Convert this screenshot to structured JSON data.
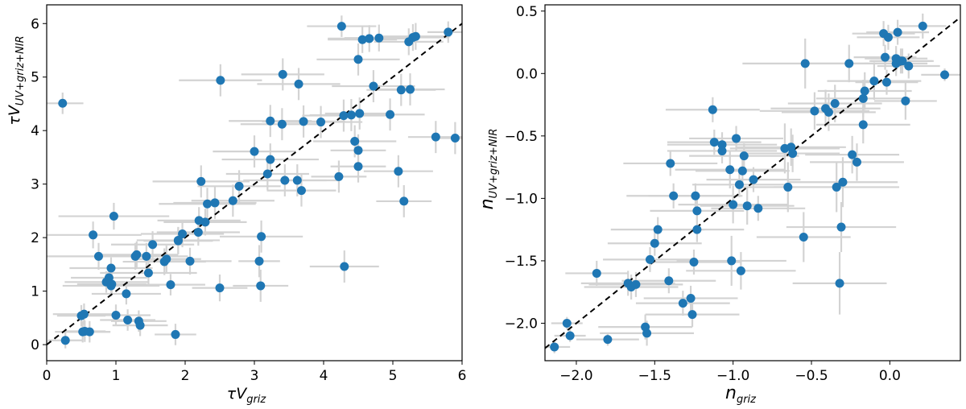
{
  "chart_data": [
    {
      "type": "scatter",
      "xlabel": "τV_griz",
      "ylabel": "τV_UV+griz+NIR",
      "xlabel_symbol": "τV",
      "xlabel_sub": "griz",
      "ylabel_symbol": "τV",
      "ylabel_sub": "UV+griz+NIR",
      "xlim": [
        0,
        6
      ],
      "ylim": [
        -0.3,
        6.35
      ],
      "xticks": [
        0,
        1,
        2,
        3,
        4,
        5,
        6
      ],
      "yticks": [
        0,
        1,
        2,
        3,
        4,
        5,
        6
      ],
      "grid": false,
      "reference_line": "y = x",
      "colors": {
        "points": "#1f77b4",
        "errorbars": "#d3d3d3",
        "line": "#000000"
      },
      "series": [
        {
          "x": [
            0.23,
            0.27,
            0.5,
            0.52,
            0.54,
            0.55,
            0.62,
            0.67,
            0.75,
            0.86,
            0.9,
            0.93,
            0.93,
            0.94,
            0.97,
            1.0,
            1.15,
            1.17,
            1.28,
            1.3,
            1.33,
            1.35,
            1.44,
            1.47,
            1.53,
            1.7,
            1.73,
            1.79,
            1.86,
            1.9,
            1.9,
            1.96,
            2.07,
            2.19,
            2.2,
            2.23,
            2.29,
            2.32,
            2.43,
            2.5,
            2.51,
            2.69,
            2.78,
            3.0,
            3.07,
            3.09,
            3.1,
            3.19,
            3.23,
            3.23,
            3.4,
            3.41,
            3.44,
            3.62,
            3.64,
            3.68,
            3.71,
            3.96,
            4.22,
            4.26,
            4.29,
            4.3,
            4.4,
            4.45,
            4.5,
            4.5,
            4.5,
            4.52,
            4.56,
            4.66,
            4.72,
            4.8,
            4.96,
            5.08,
            5.12,
            5.16,
            5.23,
            5.25,
            5.29,
            5.33,
            5.62,
            5.8,
            5.9
          ],
          "y": [
            4.51,
            0.08,
            0.54,
            0.24,
            0.57,
            0.25,
            0.24,
            2.05,
            1.65,
            1.17,
            1.25,
            1.1,
            1.43,
            1.13,
            2.4,
            0.55,
            0.95,
            0.46,
            1.65,
            1.68,
            0.44,
            0.36,
            1.65,
            1.34,
            1.87,
            1.55,
            1.6,
            1.12,
            0.19,
            1.95,
            1.94,
            2.07,
            1.56,
            2.1,
            2.32,
            3.05,
            2.29,
            2.63,
            2.65,
            1.06,
            4.94,
            2.69,
            2.96,
            3.61,
            1.56,
            1.1,
            2.02,
            3.19,
            3.46,
            4.18,
            4.12,
            5.05,
            3.07,
            3.07,
            4.87,
            2.88,
            4.17,
            4.16,
            3.14,
            5.95,
            4.28,
            1.46,
            4.29,
            3.8,
            5.33,
            3.33,
            3.63,
            4.32,
            5.7,
            5.72,
            4.83,
            5.73,
            4.3,
            3.24,
            4.76,
            2.68,
            5.66,
            4.77,
            5.74,
            5.76,
            3.88,
            5.84,
            3.86
          ],
          "xerr": [
            0.3,
            0.25,
            0.35,
            0.4,
            0.45,
            0.3,
            0.3,
            0.7,
            0.8,
            0.6,
            0.55,
            0.7,
            0.6,
            0.5,
            0.8,
            0.5,
            0.5,
            0.4,
            0.6,
            0.6,
            0.4,
            0.4,
            0.6,
            0.7,
            0.6,
            0.6,
            0.5,
            0.5,
            0.3,
            0.6,
            0.5,
            0.6,
            0.6,
            0.6,
            0.6,
            0.7,
            0.6,
            0.7,
            0.6,
            0.4,
            0.6,
            0.6,
            0.6,
            0.6,
            0.3,
            0.4,
            0.6,
            0.6,
            0.7,
            0.6,
            0.6,
            0.6,
            0.6,
            0.6,
            0.6,
            0.5,
            0.6,
            0.6,
            0.4,
            0.5,
            0.6,
            0.5,
            0.6,
            0.6,
            0.6,
            0.4,
            0.4,
            0.5,
            0.5,
            0.6,
            0.6,
            0.5,
            0.5,
            0.5,
            0.5,
            0.4,
            0.5,
            0.5,
            0.5,
            0.5,
            0.4,
            0.3,
            0.3
          ],
          "yerr": [
            0.2,
            0.15,
            0.2,
            0.2,
            0.2,
            0.2,
            0.2,
            0.25,
            0.25,
            0.2,
            0.2,
            0.2,
            0.2,
            0.2,
            0.25,
            0.2,
            0.2,
            0.2,
            0.25,
            0.25,
            0.2,
            0.2,
            0.25,
            0.25,
            0.25,
            0.25,
            0.25,
            0.2,
            0.2,
            0.25,
            0.25,
            0.25,
            0.25,
            0.25,
            0.25,
            0.3,
            0.25,
            0.3,
            0.3,
            0.25,
            0.3,
            0.3,
            0.3,
            0.3,
            0.3,
            0.3,
            0.3,
            0.3,
            0.3,
            0.3,
            0.3,
            0.3,
            0.3,
            0.3,
            0.3,
            0.3,
            0.3,
            0.3,
            0.3,
            0.2,
            0.3,
            0.3,
            0.3,
            0.3,
            0.3,
            0.3,
            0.3,
            0.3,
            0.25,
            0.25,
            0.3,
            0.25,
            0.3,
            0.3,
            0.3,
            0.3,
            0.25,
            0.3,
            0.25,
            0.25,
            0.3,
            0.2,
            0.3
          ]
        }
      ]
    },
    {
      "type": "scatter",
      "xlabel": "n_griz",
      "ylabel": "n_UV+griz+NIR",
      "xlabel_symbol": "n",
      "xlabel_sub": "griz",
      "ylabel_symbol": "n",
      "ylabel_sub": "UV+griz+NIR",
      "xlim": [
        -2.2,
        0.45
      ],
      "ylim": [
        -2.3,
        0.55
      ],
      "xticks": [
        -2.0,
        -1.5,
        -1.0,
        -0.5,
        0.0
      ],
      "xtick_labels": [
        "−2.0",
        "−1.5",
        "−1.0",
        "−0.5",
        "0.0"
      ],
      "yticks": [
        -2.0,
        -1.5,
        -1.0,
        -0.5,
        0.0,
        0.5
      ],
      "ytick_labels": [
        "−2.0",
        "−1.5",
        "−1.0",
        "−0.5",
        "0.0",
        "0.5"
      ],
      "grid": false,
      "reference_line": "y = x",
      "colors": {
        "points": "#1f77b4",
        "errorbars": "#d3d3d3",
        "line": "#000000"
      },
      "series": [
        {
          "x": [
            -2.14,
            -2.06,
            -2.04,
            -1.87,
            -1.8,
            -1.67,
            -1.65,
            -1.62,
            -1.56,
            -1.55,
            -1.53,
            -1.5,
            -1.48,
            -1.41,
            -1.4,
            -1.38,
            -1.32,
            -1.27,
            -1.26,
            -1.25,
            -1.24,
            -1.23,
            -1.23,
            -1.13,
            -1.12,
            -1.07,
            -1.07,
            -1.02,
            -1.01,
            -1.0,
            -0.98,
            -0.96,
            -0.95,
            -0.94,
            -0.93,
            -0.91,
            -0.87,
            -0.84,
            -0.67,
            -0.65,
            -0.63,
            -0.62,
            -0.55,
            -0.54,
            -0.48,
            -0.41,
            -0.39,
            -0.35,
            -0.34,
            -0.32,
            -0.31,
            -0.3,
            -0.26,
            -0.24,
            -0.21,
            -0.17,
            -0.17,
            -0.16,
            -0.1,
            -0.04,
            -0.03,
            -0.02,
            -0.01,
            0.04,
            0.04,
            0.05,
            0.07,
            0.08,
            0.1,
            0.12,
            0.21,
            0.35
          ],
          "y": [
            -2.19,
            -2.0,
            -2.1,
            -1.6,
            -2.13,
            -1.68,
            -1.71,
            -1.69,
            -2.03,
            -2.08,
            -1.49,
            -1.36,
            -1.25,
            -1.66,
            -0.72,
            -0.98,
            -1.84,
            -1.8,
            -1.93,
            -1.51,
            -0.98,
            -1.1,
            -1.25,
            -0.29,
            -0.55,
            -0.57,
            -0.62,
            -0.77,
            -1.5,
            -1.05,
            -0.52,
            -0.89,
            -1.58,
            -0.78,
            -0.66,
            -1.06,
            -0.85,
            -1.08,
            -0.6,
            -0.91,
            -0.59,
            -0.64,
            -1.31,
            0.08,
            -0.3,
            -0.28,
            -0.31,
            -0.24,
            -0.91,
            -1.68,
            -1.23,
            -0.87,
            0.08,
            -0.65,
            -0.71,
            -0.41,
            -0.2,
            -0.14,
            -0.06,
            0.32,
            0.13,
            -0.07,
            0.29,
            0.08,
            0.12,
            0.33,
            0.1,
            0.1,
            -0.22,
            0.06,
            0.38,
            -0.01
          ],
          "xerr": [
            0.1,
            0.1,
            0.1,
            0.2,
            0.2,
            0.3,
            0.3,
            0.3,
            0.3,
            0.3,
            0.3,
            0.3,
            0.3,
            0.3,
            0.3,
            0.3,
            0.3,
            0.3,
            0.3,
            0.3,
            0.3,
            0.3,
            0.3,
            0.3,
            0.3,
            0.35,
            0.35,
            0.35,
            0.35,
            0.35,
            0.3,
            0.3,
            0.35,
            0.3,
            0.35,
            0.3,
            0.3,
            0.3,
            0.35,
            0.3,
            0.35,
            0.3,
            0.3,
            0.4,
            0.35,
            0.35,
            0.3,
            0.3,
            0.4,
            0.3,
            0.35,
            0.35,
            0.3,
            0.3,
            0.3,
            0.3,
            0.3,
            0.3,
            0.3,
            0.2,
            0.2,
            0.2,
            0.2,
            0.2,
            0.2,
            0.2,
            0.2,
            0.2,
            0.2,
            0.2,
            0.15,
            0.15
          ],
          "yerr": [
            0.05,
            0.05,
            0.05,
            0.1,
            0.05,
            0.1,
            0.1,
            0.1,
            0.1,
            0.1,
            0.1,
            0.1,
            0.1,
            0.1,
            0.1,
            0.1,
            0.1,
            0.1,
            0.1,
            0.1,
            0.1,
            0.1,
            0.1,
            0.1,
            0.1,
            0.1,
            0.1,
            0.15,
            0.2,
            0.15,
            0.1,
            0.1,
            0.15,
            0.1,
            0.1,
            0.15,
            0.1,
            0.1,
            0.2,
            0.2,
            0.15,
            0.15,
            0.2,
            0.2,
            0.15,
            0.15,
            0.15,
            0.15,
            0.2,
            0.25,
            0.2,
            0.2,
            0.15,
            0.15,
            0.15,
            0.15,
            0.15,
            0.15,
            0.15,
            0.1,
            0.1,
            0.1,
            0.1,
            0.1,
            0.1,
            0.1,
            0.1,
            0.1,
            0.15,
            0.1,
            0.1,
            0.05
          ]
        }
      ]
    }
  ]
}
